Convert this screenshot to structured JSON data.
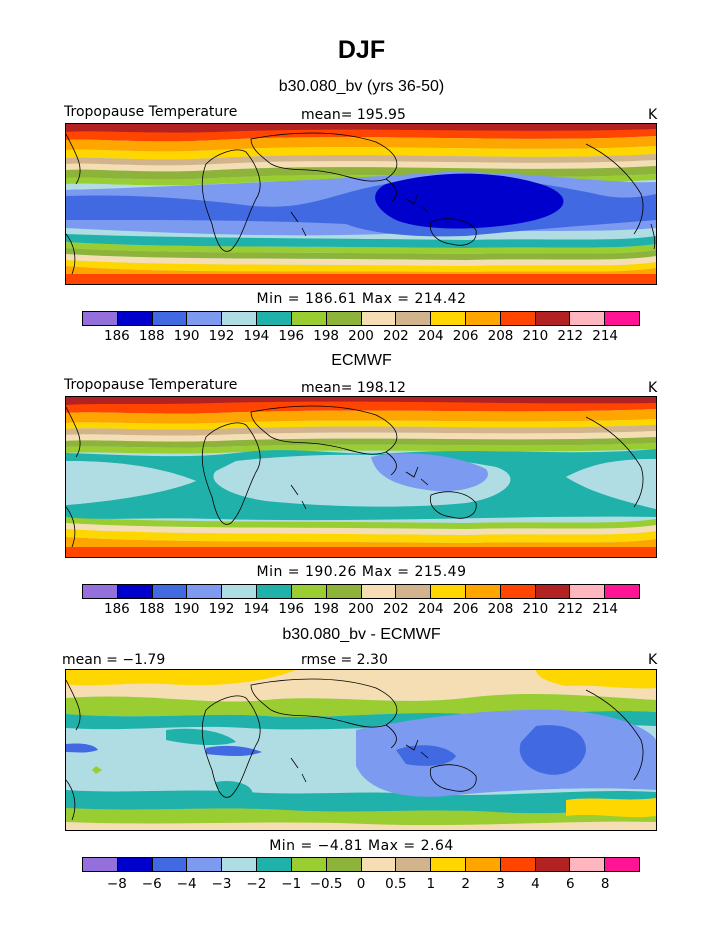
{
  "title": "DJF",
  "panels": [
    {
      "subtitle": "b30.080_bv (yrs 36-50)",
      "left_label": "Tropopause Temperature",
      "center_label": "mean= 195.95",
      "right_label": "K",
      "minmax": "Min = 186.61 Max = 214.42",
      "ticks": [
        "186",
        "188",
        "190",
        "192",
        "194",
        "196",
        "198",
        "200",
        "202",
        "204",
        "206",
        "208",
        "210",
        "212",
        "214"
      ]
    },
    {
      "subtitle": "ECMWF",
      "left_label": "Tropopause Temperature",
      "center_label": "mean= 198.12",
      "right_label": "K",
      "minmax": "Min = 190.26 Max = 215.49",
      "ticks": [
        "186",
        "188",
        "190",
        "192",
        "194",
        "196",
        "198",
        "200",
        "202",
        "204",
        "206",
        "208",
        "210",
        "212",
        "214"
      ]
    },
    {
      "subtitle": "b30.080_bv - ECMWF",
      "left_label": "mean = −1.79",
      "center_label": "rmse = 2.30",
      "right_label": "K",
      "minmax": "Min = −4.81 Max = 2.64",
      "ticks": [
        "−8",
        "−6",
        "−4",
        "−3",
        "−2",
        "−1",
        "−0.5",
        "0",
        "0.5",
        "1",
        "2",
        "3",
        "4",
        "6",
        "8"
      ]
    }
  ],
  "palette": [
    "#9370db",
    "#0000cd",
    "#4169e1",
    "#7b9af0",
    "#b0dde4",
    "#20b2aa",
    "#9acd32",
    "#8db33a",
    "#f5deb3",
    "#d2b48c",
    "#ffd700",
    "#ffa500",
    "#ff4500",
    "#b22222",
    "#ffb6c1",
    "#ff1493"
  ]
}
